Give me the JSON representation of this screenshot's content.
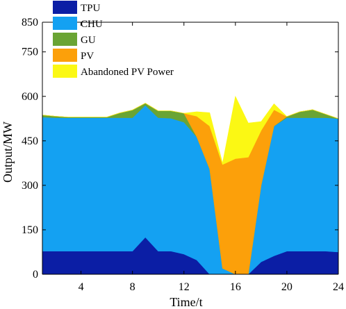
{
  "chart_data": {
    "type": "area",
    "stacked": true,
    "title": "",
    "xlabel": "Time/t",
    "ylabel": "Output/MW",
    "xlim": [
      1,
      24
    ],
    "ylim": [
      0,
      850
    ],
    "xticks": [
      4,
      8,
      12,
      16,
      20,
      24
    ],
    "yticks": [
      0,
      150,
      300,
      450,
      600,
      750,
      850
    ],
    "grid": false,
    "legend_position": "top-left",
    "x": [
      1,
      2,
      3,
      4,
      5,
      6,
      7,
      8,
      9,
      10,
      11,
      12,
      13,
      14,
      15,
      16,
      17,
      18,
      19,
      20,
      21,
      22,
      23,
      24
    ],
    "series": [
      {
        "name": "TPU",
        "color": "#0b1ea5",
        "values": [
          78,
          78,
          78,
          78,
          78,
          78,
          78,
          78,
          125,
          78,
          78,
          68,
          48,
          0,
          0,
          0,
          0,
          42,
          62,
          78,
          78,
          78,
          78,
          75
        ]
      },
      {
        "name": "CHU",
        "color": "#14a1f2",
        "values": [
          452,
          450,
          450,
          450,
          450,
          450,
          450,
          450,
          445,
          450,
          448,
          445,
          415,
          355,
          20,
          0,
          0,
          258,
          438,
          450,
          450,
          450,
          450,
          450
        ]
      },
      {
        "name": "GU",
        "color": "#6aa434",
        "values": [
          7,
          5,
          2,
          2,
          2,
          2,
          16,
          26,
          7,
          23,
          25,
          30,
          0,
          0,
          0,
          0,
          0,
          0,
          0,
          4,
          20,
          27,
          12,
          0
        ]
      },
      {
        "name": "PV",
        "color": "#fca00a",
        "values": [
          0,
          0,
          0,
          0,
          0,
          0,
          0,
          0,
          0,
          0,
          0,
          0,
          70,
          145,
          350,
          390,
          395,
          185,
          55,
          0,
          0,
          0,
          0,
          0
        ]
      },
      {
        "name": "Abandoned PV Power",
        "color": "#fbf814",
        "values": [
          0,
          0,
          0,
          0,
          0,
          0,
          0,
          0,
          0,
          0,
          0,
          0,
          15,
          45,
          5,
          210,
          115,
          30,
          20,
          0,
          0,
          0,
          0,
          0
        ]
      }
    ]
  }
}
